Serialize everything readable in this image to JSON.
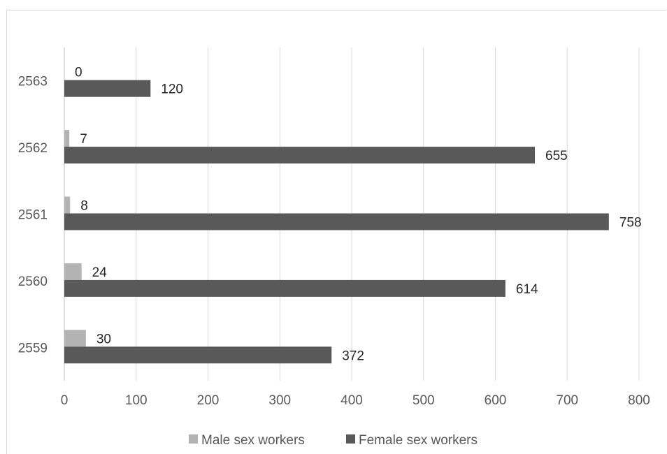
{
  "chart_data": {
    "type": "bar",
    "orientation": "horizontal",
    "categories": [
      "2563",
      "2562",
      "2561",
      "2560",
      "2559"
    ],
    "series": [
      {
        "name": "Male sex workers",
        "values": [
          0,
          7,
          8,
          24,
          30
        ],
        "color": "#b3b3b3"
      },
      {
        "name": "Female sex workers",
        "values": [
          120,
          655,
          758,
          614,
          372
        ],
        "color": "#595959"
      }
    ],
    "xlim": [
      0,
      800
    ],
    "xticks": [
      "0",
      "100",
      "200",
      "300",
      "400",
      "500",
      "600",
      "700",
      "800"
    ],
    "grid": true,
    "legend_position": "bottom",
    "title": "",
    "xlabel": "",
    "ylabel": ""
  }
}
